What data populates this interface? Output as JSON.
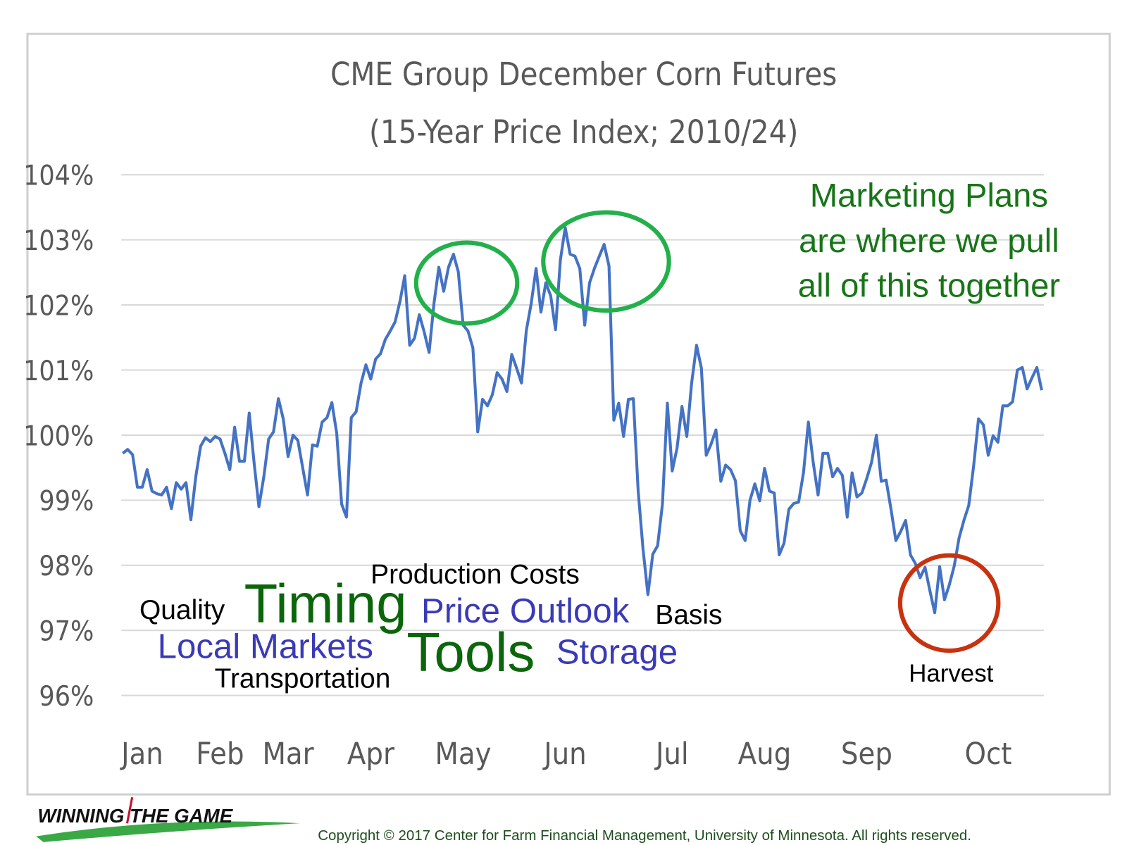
{
  "chart_data": {
    "type": "line",
    "title": "CME Group December Corn Futures",
    "subtitle": "(15-Year Price Index; 2010/24)",
    "categories": [
      null,
      null,
      null,
      null,
      "Jan",
      null,
      null,
      null,
      null,
      null,
      null,
      null,
      null,
      null,
      null,
      null,
      null,
      null,
      null,
      null,
      "Feb",
      null,
      null,
      null,
      null,
      null,
      null,
      null,
      null,
      null,
      null,
      null,
      null,
      null,
      "Mar",
      null,
      null,
      null,
      null,
      null,
      null,
      null,
      null,
      null,
      null,
      null,
      null,
      null,
      null,
      null,
      null,
      "Apr",
      null,
      null,
      null,
      null,
      null,
      null,
      null,
      null,
      null,
      null,
      null,
      null,
      null,
      null,
      null,
      null,
      null,
      null,
      "May",
      null,
      null,
      null,
      null,
      null,
      null,
      null,
      null,
      null,
      null,
      null,
      null,
      null,
      null,
      null,
      null,
      null,
      null,
      null,
      null,
      "Jun",
      null,
      null,
      null,
      null,
      null,
      null,
      null,
      null,
      null,
      null,
      null,
      null,
      null,
      null,
      null,
      null,
      null,
      null,
      null,
      null,
      null,
      "Jul",
      null,
      null,
      null,
      null,
      null,
      null,
      null,
      null,
      null,
      null,
      null,
      null,
      null,
      null,
      null,
      null,
      null,
      null,
      "Aug",
      null,
      null,
      null,
      null,
      null,
      null,
      null,
      null,
      null,
      null,
      null,
      null,
      null,
      null,
      null,
      null,
      null,
      null,
      null,
      null,
      "Sep",
      null,
      null,
      null,
      null,
      null,
      null,
      null,
      null,
      null,
      null,
      null,
      null,
      null,
      null,
      null,
      null,
      null,
      null,
      null,
      null,
      null,
      null,
      null,
      null,
      "Oct",
      null,
      null,
      null,
      null,
      null,
      null,
      null,
      null,
      null,
      null,
      null
    ],
    "series": [
      {
        "color": "#4472c4",
        "values": [
          99.72,
          99.78,
          99.7,
          99.2,
          99.2,
          99.47,
          99.14,
          99.1,
          99.08,
          99.2,
          98.87,
          99.27,
          99.17,
          99.27,
          98.7,
          99.36,
          99.83,
          99.96,
          99.9,
          99.98,
          99.94,
          99.72,
          99.47,
          100.12,
          99.6,
          99.6,
          100.34,
          99.58,
          98.9,
          99.36,
          99.94,
          100.05,
          100.56,
          100.25,
          99.67,
          100.0,
          99.92,
          99.5,
          99.08,
          99.85,
          99.83,
          100.2,
          100.27,
          100.5,
          100.03,
          98.94,
          98.74,
          100.27,
          100.36,
          100.8,
          101.08,
          100.86,
          101.17,
          101.25,
          101.47,
          101.6,
          101.74,
          102.05,
          102.45,
          101.38,
          101.49,
          101.85,
          101.58,
          101.27,
          102.02,
          102.58,
          102.21,
          102.58,
          102.78,
          102.51,
          101.69,
          101.6,
          101.34,
          100.05,
          100.55,
          100.45,
          100.62,
          100.96,
          100.86,
          100.67,
          101.24,
          101.03,
          100.8,
          101.61,
          102.02,
          102.56,
          101.89,
          102.34,
          102.14,
          101.62,
          102.69,
          103.19,
          102.78,
          102.75,
          102.56,
          101.69,
          102.34,
          102.56,
          102.75,
          102.93,
          102.6,
          100.23,
          100.49,
          99.98,
          100.55,
          100.56,
          99.14,
          98.25,
          97.55,
          98.17,
          98.3,
          98.94,
          100.49,
          99.45,
          99.8,
          100.44,
          99.98,
          100.8,
          101.38,
          101.03,
          99.69,
          99.86,
          100.08,
          99.29,
          99.54,
          99.47,
          99.3,
          98.53,
          98.38,
          99.0,
          99.25,
          98.99,
          99.49,
          99.14,
          99.11,
          98.16,
          98.34,
          98.86,
          98.95,
          98.97,
          99.42,
          100.2,
          99.58,
          99.08,
          99.72,
          99.72,
          99.36,
          99.49,
          99.38,
          98.74,
          99.42,
          99.05,
          99.11,
          99.33,
          99.58,
          100.0,
          99.29,
          99.31,
          98.86,
          98.38,
          98.52,
          98.69,
          98.16,
          98.03,
          97.81,
          97.97,
          97.61,
          97.27,
          97.98,
          97.47,
          97.7,
          97.99,
          98.42,
          98.69,
          98.92,
          99.53,
          100.25,
          100.16,
          99.69,
          99.99,
          99.89,
          100.45,
          100.45,
          100.51,
          101.0,
          101.04,
          100.71,
          100.88,
          101.04,
          100.69
        ]
      }
    ],
    "ylim": [
      96,
      104
    ],
    "yticks": [
      {
        "value": 96,
        "label": "96%"
      },
      {
        "value": 97,
        "label": "97%"
      },
      {
        "value": 98,
        "label": "98%"
      },
      {
        "value": 99,
        "label": "99%"
      },
      {
        "value": 100,
        "label": "100%"
      },
      {
        "value": 101,
        "label": "101%"
      },
      {
        "value": 102,
        "label": "102%"
      },
      {
        "value": 103,
        "label": "103%"
      },
      {
        "value": 104,
        "label": "104%"
      }
    ],
    "grid": true,
    "annotations": [
      {
        "text": "Marketing Plans",
        "color": "#177517"
      },
      {
        "text": "are where we pull",
        "color": "#177517"
      },
      {
        "text": "all of this together",
        "color": "#177517"
      },
      {
        "text": "Production Costs",
        "color": "#000000"
      },
      {
        "text": "Quality",
        "color": "#000000"
      },
      {
        "text": "Timing",
        "color": "#0b650b"
      },
      {
        "text": "Price Outlook",
        "color": "#3a3ab8"
      },
      {
        "text": "Basis",
        "color": "#000000"
      },
      {
        "text": "Local Markets",
        "color": "#3a3ab8"
      },
      {
        "text": "Tools",
        "color": "#0b650b"
      },
      {
        "text": "Storage",
        "color": "#3a3ab8"
      },
      {
        "text": "Transportation",
        "color": "#000000"
      },
      {
        "text": "Harvest",
        "color": "#000000"
      }
    ]
  },
  "footer": {
    "logo": "WINNING THE GAME",
    "copyright": "Copyright © 2017 Center for Farm Financial Management, University of Minnesota. All rights reserved."
  }
}
